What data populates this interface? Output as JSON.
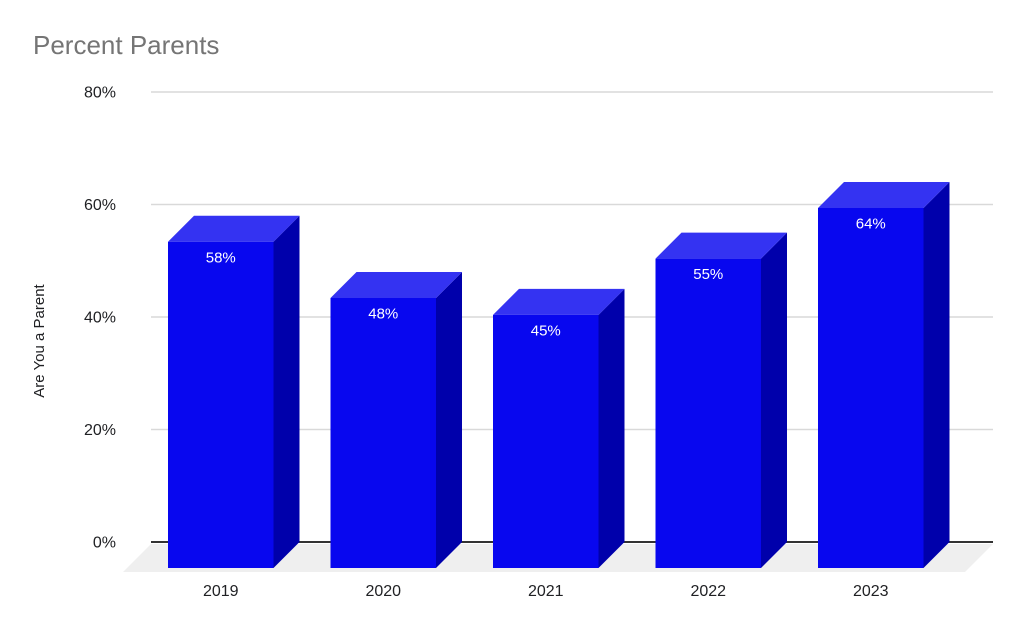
{
  "title": "Percent Parents",
  "chart_data": {
    "type": "bar",
    "style": "3d-column",
    "title": "Percent Parents",
    "xlabel": "",
    "ylabel": "Are You a Parent",
    "categories": [
      "2019",
      "2020",
      "2021",
      "2022",
      "2023"
    ],
    "values": [
      58,
      48,
      45,
      55,
      64
    ],
    "bar_labels": [
      "58%",
      "48%",
      "45%",
      "55%",
      "64%"
    ],
    "ylim": [
      0,
      80
    ],
    "yticks": [
      0,
      20,
      40,
      60,
      80
    ],
    "ytick_labels": [
      "0%",
      "20%",
      "40%",
      "60%",
      "80%"
    ],
    "grid": true,
    "legend": "none"
  },
  "colors": {
    "background": "#FFFFFF",
    "bar_front": "#0807EF",
    "bar_top": "#3433F2",
    "bar_side": "#0000AB",
    "floor": "#EFEFEF",
    "gridline": "#D9D9D9",
    "baseline": "#333333",
    "title_text": "#757575",
    "axis_text": "#202124",
    "bar_label_text": "#FFFFFF"
  }
}
